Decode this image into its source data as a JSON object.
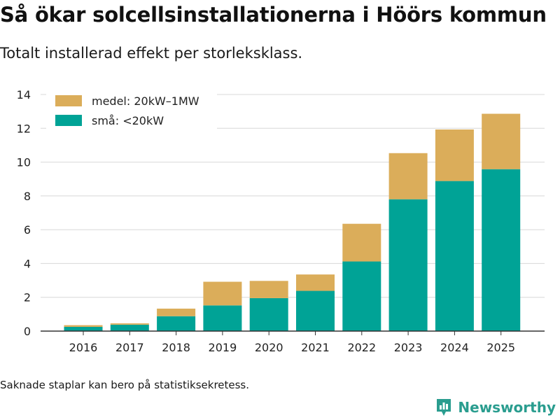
{
  "title": "Så ökar solcellsinstallationerna i Höörs kommun",
  "subtitle": "Totalt installerad effekt per storleksklass.",
  "footnote": "Saknade staplar kan bero på statistiksekretess.",
  "brand": {
    "name": "Newsworthy",
    "icon": "newsworthy-logo-icon"
  },
  "colors": {
    "small": "#00a396",
    "medium": "#dbad5a",
    "grid": "#d8d8d8",
    "axis": "#333333",
    "brand": "#2a9d8f"
  },
  "chart_data": {
    "type": "bar",
    "stacked": true,
    "categories": [
      "2016",
      "2017",
      "2018",
      "2019",
      "2020",
      "2021",
      "2022",
      "2023",
      "2024",
      "2025"
    ],
    "series": [
      {
        "name": "små: <20kW",
        "key": "small",
        "values": [
          0.25,
          0.38,
          0.88,
          1.52,
          1.95,
          2.38,
          4.12,
          7.8,
          8.88,
          9.58
        ]
      },
      {
        "name": "medel: 20kW–1MW",
        "key": "medium",
        "values": [
          0.1,
          0.08,
          0.45,
          1.4,
          1.02,
          0.97,
          2.23,
          2.73,
          3.05,
          3.28
        ]
      }
    ],
    "yticks": [
      0,
      2,
      4,
      6,
      8,
      10,
      12,
      14
    ],
    "ylim": [
      0,
      14
    ],
    "xlabel": "",
    "ylabel": "",
    "grid": true,
    "legend": {
      "position": "top-left",
      "order": [
        "medium",
        "small"
      ],
      "labels": {
        "medium": "medel: 20kW–1MW",
        "small": "små: <20kW"
      }
    }
  }
}
